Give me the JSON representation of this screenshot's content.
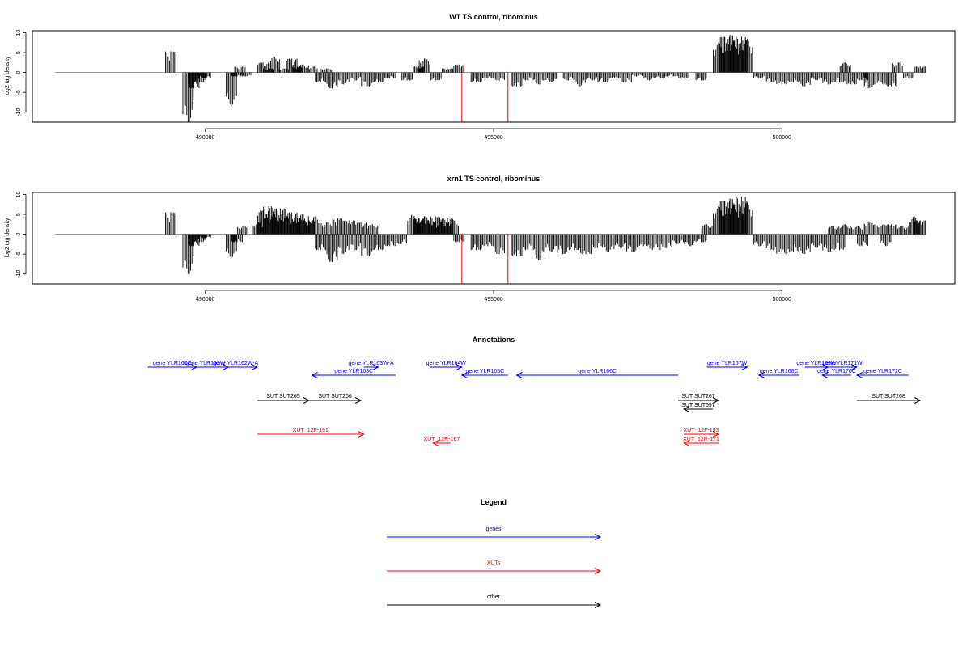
{
  "chart_data": [
    {
      "type": "bar",
      "title": "WT TS control, ribominus",
      "ylabel": "log2 tag density",
      "xlim": [
        487000,
        503000
      ],
      "ylim": [
        -12.5,
        10.5
      ],
      "yticks": [
        10,
        5,
        0,
        -5,
        -10
      ],
      "xticks": [
        490000,
        495000,
        500000
      ],
      "xtick_labels": [
        "490000",
        "495000",
        "500000"
      ],
      "series": [
        {
          "values": [
            {
              "x": 489400,
              "y": 5.3
            },
            {
              "x": 489700,
              "y": -12.5
            },
            {
              "x": 489800,
              "y": -4.0
            },
            {
              "x": 489900,
              "y": -2.5
            },
            {
              "x": 490000,
              "y": -1.5
            },
            {
              "x": 490450,
              "y": -8.5
            },
            {
              "x": 490550,
              "y": -1.0
            },
            {
              "x": 490600,
              "y": 1.5
            },
            {
              "x": 490700,
              "y": -1.0
            },
            {
              "x": 491000,
              "y": 2.5
            },
            {
              "x": 491100,
              "y": 1.0
            },
            {
              "x": 491200,
              "y": 4.0
            },
            {
              "x": 491350,
              "y": 1.0
            },
            {
              "x": 491500,
              "y": 3.5
            },
            {
              "x": 491600,
              "y": 1.5
            },
            {
              "x": 491700,
              "y": 2.0
            },
            {
              "x": 491850,
              "y": 1.5
            },
            {
              "x": 492000,
              "y": -2.5
            },
            {
              "x": 492100,
              "y": 1.0
            },
            {
              "x": 492200,
              "y": -4.0
            },
            {
              "x": 492400,
              "y": -3.0
            },
            {
              "x": 492600,
              "y": -2.0
            },
            {
              "x": 492800,
              "y": -3.5
            },
            {
              "x": 493000,
              "y": -2.5
            },
            {
              "x": 493200,
              "y": -1.5
            },
            {
              "x": 493500,
              "y": -2.0
            },
            {
              "x": 493700,
              "y": 1.5
            },
            {
              "x": 493800,
              "y": 3.5
            },
            {
              "x": 494000,
              "y": -2.0
            },
            {
              "x": 494200,
              "y": 1.0
            },
            {
              "x": 494400,
              "y": 2.0
            },
            {
              "x": 494700,
              "y": -2.5
            },
            {
              "x": 494900,
              "y": -1.5
            },
            {
              "x": 495100,
              "y": -2.0
            },
            {
              "x": 495400,
              "y": -3.5
            },
            {
              "x": 495600,
              "y": -2.0
            },
            {
              "x": 495800,
              "y": -3.0
            },
            {
              "x": 496000,
              "y": -2.5
            },
            {
              "x": 496300,
              "y": -2.0
            },
            {
              "x": 496500,
              "y": -3.5
            },
            {
              "x": 496700,
              "y": -2.0
            },
            {
              "x": 496900,
              "y": -2.5
            },
            {
              "x": 497100,
              "y": -1.5
            },
            {
              "x": 497300,
              "y": -2.5
            },
            {
              "x": 497500,
              "y": -1.0
            },
            {
              "x": 497700,
              "y": -2.0
            },
            {
              "x": 497900,
              "y": -1.5
            },
            {
              "x": 498100,
              "y": -1.0
            },
            {
              "x": 498300,
              "y": -1.5
            },
            {
              "x": 498600,
              "y": -2.0
            },
            {
              "x": 498900,
              "y": 7.5
            },
            {
              "x": 499000,
              "y": 9.0
            },
            {
              "x": 499100,
              "y": 9.5
            },
            {
              "x": 499200,
              "y": 8.0
            },
            {
              "x": 499300,
              "y": 9.0
            },
            {
              "x": 499400,
              "y": 8.5
            },
            {
              "x": 499600,
              "y": -1.5
            },
            {
              "x": 499800,
              "y": -2.5
            },
            {
              "x": 500000,
              "y": -3.0
            },
            {
              "x": 500200,
              "y": -2.5
            },
            {
              "x": 500400,
              "y": -3.5
            },
            {
              "x": 500600,
              "y": -2.0
            },
            {
              "x": 500800,
              "y": -3.0
            },
            {
              "x": 501000,
              "y": -2.5
            },
            {
              "x": 501100,
              "y": 2.5
            },
            {
              "x": 501200,
              "y": -3.0
            },
            {
              "x": 501400,
              "y": -2.0
            },
            {
              "x": 501500,
              "y": -4.0
            },
            {
              "x": 501700,
              "y": -3.0
            },
            {
              "x": 501900,
              "y": -3.5
            },
            {
              "x": 502000,
              "y": 2.5
            },
            {
              "x": 502200,
              "y": -1.5
            },
            {
              "x": 502400,
              "y": 1.5
            }
          ]
        },
        {
          "values": [
            {
              "x": 494450,
              "y": -12.5
            },
            {
              "x": 495250,
              "y": -12.5
            }
          ]
        }
      ]
    },
    {
      "type": "bar",
      "title": "xrn1 TS control, ribominus",
      "ylabel": "log2 tag density",
      "xlim": [
        487000,
        503000
      ],
      "ylim": [
        -12.5,
        10.5
      ],
      "yticks": [
        10,
        5,
        0,
        -5,
        -10
      ],
      "xticks": [
        490000,
        495000,
        500000
      ],
      "xtick_labels": [
        "490000",
        "495000",
        "500000"
      ],
      "series": [
        {
          "values": [
            {
              "x": 489400,
              "y": 5.5
            },
            {
              "x": 489700,
              "y": -10.0
            },
            {
              "x": 489800,
              "y": -3.0
            },
            {
              "x": 489900,
              "y": -2.0
            },
            {
              "x": 490000,
              "y": -1.0
            },
            {
              "x": 490450,
              "y": -6.0
            },
            {
              "x": 490550,
              "y": -2.0
            },
            {
              "x": 490650,
              "y": 2.0
            },
            {
              "x": 490900,
              "y": 3.0
            },
            {
              "x": 491000,
              "y": 6.0
            },
            {
              "x": 491100,
              "y": 7.0
            },
            {
              "x": 491200,
              "y": 5.0
            },
            {
              "x": 491300,
              "y": 6.5
            },
            {
              "x": 491400,
              "y": 4.5
            },
            {
              "x": 491500,
              "y": 5.5
            },
            {
              "x": 491600,
              "y": 4.0
            },
            {
              "x": 491700,
              "y": 5.0
            },
            {
              "x": 491800,
              "y": 3.5
            },
            {
              "x": 491900,
              "y": 4.5
            },
            {
              "x": 492000,
              "y": -4.0
            },
            {
              "x": 492100,
              "y": 3.0
            },
            {
              "x": 492200,
              "y": -7.0
            },
            {
              "x": 492300,
              "y": 4.0
            },
            {
              "x": 492400,
              "y": -5.0
            },
            {
              "x": 492500,
              "y": 3.5
            },
            {
              "x": 492600,
              "y": -4.0
            },
            {
              "x": 492700,
              "y": 3.0
            },
            {
              "x": 492800,
              "y": -5.5
            },
            {
              "x": 492900,
              "y": 2.5
            },
            {
              "x": 493000,
              "y": -4.0
            },
            {
              "x": 493200,
              "y": -3.0
            },
            {
              "x": 493400,
              "y": -2.5
            },
            {
              "x": 493600,
              "y": 5.0
            },
            {
              "x": 493700,
              "y": 4.0
            },
            {
              "x": 493800,
              "y": 4.5
            },
            {
              "x": 493900,
              "y": 3.5
            },
            {
              "x": 494000,
              "y": 4.5
            },
            {
              "x": 494100,
              "y": 3.0
            },
            {
              "x": 494200,
              "y": 4.0
            },
            {
              "x": 494300,
              "y": 3.5
            },
            {
              "x": 494400,
              "y": -2.0
            },
            {
              "x": 494700,
              "y": -4.0
            },
            {
              "x": 494900,
              "y": -3.0
            },
            {
              "x": 495100,
              "y": -5.0
            },
            {
              "x": 495400,
              "y": -5.5
            },
            {
              "x": 495600,
              "y": -4.0
            },
            {
              "x": 495800,
              "y": -6.5
            },
            {
              "x": 496000,
              "y": -4.5
            },
            {
              "x": 496200,
              "y": -5.0
            },
            {
              "x": 496400,
              "y": -4.0
            },
            {
              "x": 496600,
              "y": -5.0
            },
            {
              "x": 496800,
              "y": -3.5
            },
            {
              "x": 497000,
              "y": -4.5
            },
            {
              "x": 497200,
              "y": -3.5
            },
            {
              "x": 497400,
              "y": -4.5
            },
            {
              "x": 497600,
              "y": -3.0
            },
            {
              "x": 497800,
              "y": -4.0
            },
            {
              "x": 498000,
              "y": -3.5
            },
            {
              "x": 498200,
              "y": -2.5
            },
            {
              "x": 498400,
              "y": -3.0
            },
            {
              "x": 498600,
              "y": -2.0
            },
            {
              "x": 498700,
              "y": 2.5
            },
            {
              "x": 498900,
              "y": 7.0
            },
            {
              "x": 499000,
              "y": 8.5
            },
            {
              "x": 499100,
              "y": 9.0
            },
            {
              "x": 499200,
              "y": 7.5
            },
            {
              "x": 499300,
              "y": 9.5
            },
            {
              "x": 499400,
              "y": 8.0
            },
            {
              "x": 499600,
              "y": -3.0
            },
            {
              "x": 499800,
              "y": -4.0
            },
            {
              "x": 500000,
              "y": -5.0
            },
            {
              "x": 500200,
              "y": -4.5
            },
            {
              "x": 500400,
              "y": -5.0
            },
            {
              "x": 500600,
              "y": -3.5
            },
            {
              "x": 500800,
              "y": -4.5
            },
            {
              "x": 500900,
              "y": 2.0
            },
            {
              "x": 501000,
              "y": -4.0
            },
            {
              "x": 501100,
              "y": 2.5
            },
            {
              "x": 501300,
              "y": 2.0
            },
            {
              "x": 501400,
              "y": -3.0
            },
            {
              "x": 501500,
              "y": 3.0
            },
            {
              "x": 501700,
              "y": 2.5
            },
            {
              "x": 501800,
              "y": -3.0
            },
            {
              "x": 501900,
              "y": 2.5
            },
            {
              "x": 502100,
              "y": 2.0
            },
            {
              "x": 502300,
              "y": 4.5
            },
            {
              "x": 502400,
              "y": 3.5
            }
          ]
        },
        {
          "values": [
            {
              "x": 494450,
              "y": -12.5
            },
            {
              "x": 495250,
              "y": -12.5
            }
          ]
        }
      ]
    }
  ],
  "annotations": {
    "title": "Annotations",
    "colors": {
      "genes": "#0000ff",
      "xuts": "#ff0000",
      "other": "#000000"
    },
    "features": [
      {
        "label": "gene YLR160C",
        "start": 489000,
        "end": 489850,
        "row": 0,
        "kind": "genes"
      },
      {
        "label": "gene YLR162W",
        "start": 489600,
        "end": 490400,
        "row": 0,
        "kind": "genes"
      },
      {
        "label": "gene YLR162W-A",
        "start": 490150,
        "end": 490900,
        "row": 0,
        "kind": "genes"
      },
      {
        "label": "gene YLR163W-A",
        "start": 492750,
        "end": 493000,
        "row": 0,
        "kind": "genes"
      },
      {
        "label": "gene YLR163C",
        "start": 493300,
        "end": 491850,
        "row": 1,
        "kind": "genes"
      },
      {
        "label": "gene YLR164W",
        "start": 493900,
        "end": 494450,
        "row": 0,
        "kind": "genes"
      },
      {
        "label": "gene YLR165C",
        "start": 495250,
        "end": 494450,
        "row": 1,
        "kind": "genes"
      },
      {
        "label": "gene YLR166C",
        "start": 498200,
        "end": 495400,
        "row": 1,
        "kind": "genes"
      },
      {
        "label": "gene YLR167W",
        "start": 498700,
        "end": 499400,
        "row": 0,
        "kind": "genes"
      },
      {
        "label": "gene YLR168C",
        "start": 500300,
        "end": 499600,
        "row": 1,
        "kind": "genes"
      },
      {
        "label": "gene YLR169W",
        "start": 500400,
        "end": 500800,
        "row": 0,
        "kind": "genes"
      },
      {
        "label": "gene YLR170C",
        "start": 501200,
        "end": 500700,
        "row": 1,
        "kind": "genes"
      },
      {
        "label": "gene YLR171W",
        "start": 500800,
        "end": 501300,
        "row": 0,
        "kind": "genes"
      },
      {
        "label": "gene YLR172C",
        "start": 502200,
        "end": 501300,
        "row": 1,
        "kind": "genes"
      },
      {
        "label": "SUT SUT265",
        "start": 490900,
        "end": 491800,
        "row": 2,
        "kind": "other"
      },
      {
        "label": "SUT SUT266",
        "start": 491800,
        "end": 492700,
        "row": 2,
        "kind": "other"
      },
      {
        "label": "SUT SUT267",
        "start": 498200,
        "end": 498900,
        "row": 2,
        "kind": "other"
      },
      {
        "label": "SUT SUT697",
        "start": 498800,
        "end": 498300,
        "row": 3,
        "kind": "other"
      },
      {
        "label": "SUT SUT268",
        "start": 501300,
        "end": 502400,
        "row": 2,
        "kind": "other"
      },
      {
        "label": "XUT_12F-191",
        "start": 490900,
        "end": 492750,
        "row": 4,
        "kind": "xuts"
      },
      {
        "label": "XUT_12R-167",
        "start": 494250,
        "end": 493950,
        "row": 5,
        "kind": "xuts"
      },
      {
        "label": "XUT_12F-193",
        "start": 498300,
        "end": 498900,
        "row": 4,
        "kind": "xuts"
      },
      {
        "label": "XUT_12R-171",
        "start": 498900,
        "end": 498300,
        "row": 5,
        "kind": "xuts"
      }
    ]
  },
  "legend": {
    "title": "Legend",
    "items": [
      {
        "label": "genes",
        "color": "#0000ff"
      },
      {
        "label": "XUTs",
        "color": "#ff0000"
      },
      {
        "label": "other",
        "color": "#000000"
      }
    ]
  }
}
